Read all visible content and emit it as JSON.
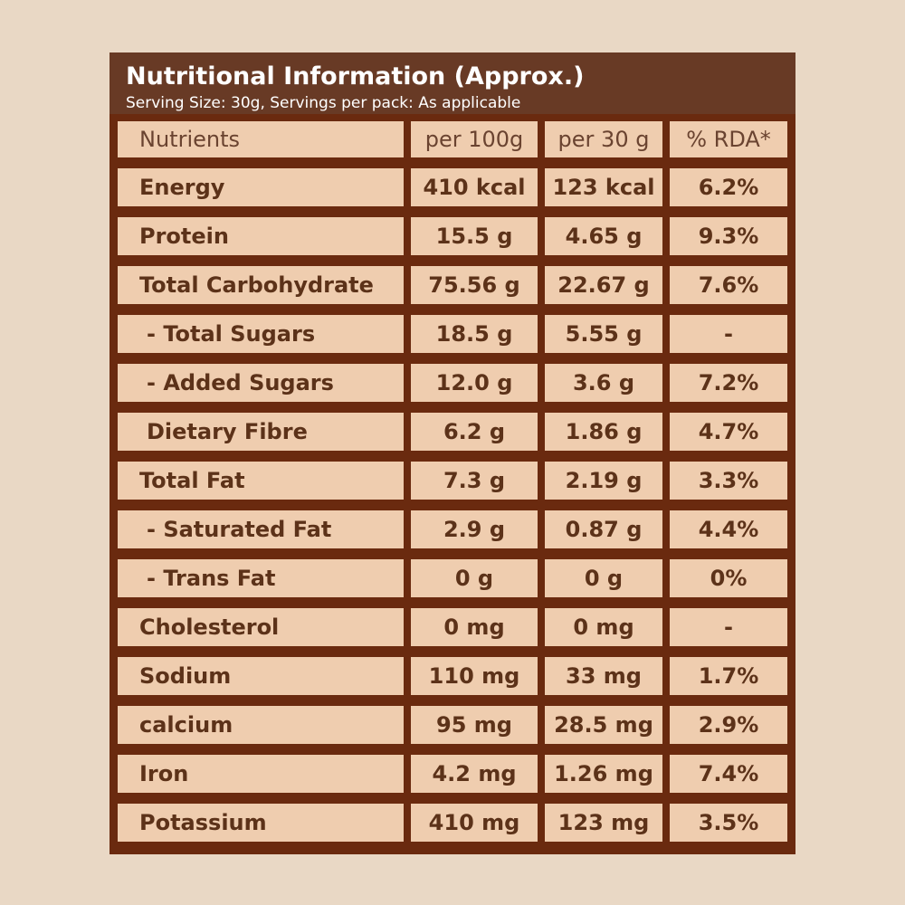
{
  "header": {
    "title": "Nutritional Information (Approx.)",
    "subtitle": "Serving Size: 30g, Servings per pack: As applicable"
  },
  "table": {
    "columns": [
      "Nutrients",
      "per 100g",
      "per 30 g",
      "% RDA*"
    ],
    "rows": [
      [
        "Energy",
        "410 kcal",
        "123 kcal",
        "6.2%"
      ],
      [
        "Protein",
        "15.5 g",
        "4.65 g",
        "9.3%"
      ],
      [
        "Total Carbohydrate",
        "75.56 g",
        "22.67 g",
        "7.6%"
      ],
      [
        " - Total Sugars",
        "18.5 g",
        "5.55 g",
        "-"
      ],
      [
        " - Added Sugars",
        "12.0 g",
        "3.6 g",
        "7.2%"
      ],
      [
        " Dietary Fibre",
        "6.2 g",
        "1.86 g",
        "4.7%"
      ],
      [
        "Total Fat",
        "7.3 g",
        "2.19 g",
        "3.3%"
      ],
      [
        " - Saturated Fat",
        "2.9 g",
        "0.87 g",
        "4.4%"
      ],
      [
        " - Trans Fat",
        "0 g",
        "0 g",
        "0%"
      ],
      [
        "Cholesterol",
        "0 mg",
        "0 mg",
        "-"
      ],
      [
        "Sodium",
        "110 mg",
        "33 mg",
        "1.7%"
      ],
      [
        "calcium",
        "95 mg",
        "28.5 mg",
        "2.9%"
      ],
      [
        "Iron",
        "4.2 mg",
        "1.26 mg",
        "7.4%"
      ],
      [
        "Potassium",
        "410 mg",
        "123 mg",
        "3.5%"
      ]
    ]
  }
}
